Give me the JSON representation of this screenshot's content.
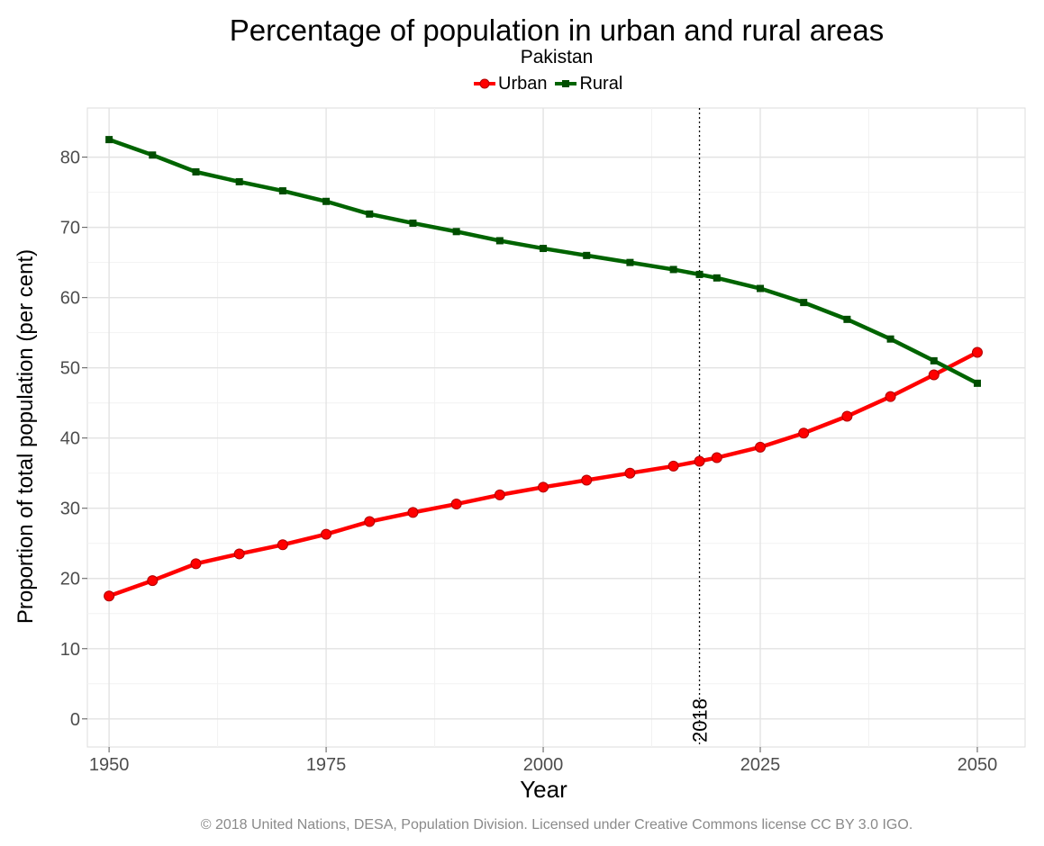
{
  "chart_data": {
    "type": "line",
    "title": "Percentage of population in urban and rural areas",
    "subtitle": "Pakistan",
    "xlabel": "Year",
    "ylabel": "Proportion of total population (per cent)",
    "xlim": [
      1947.5,
      2055.5
    ],
    "ylim": [
      -4,
      87
    ],
    "x_ticks": [
      1950,
      1975,
      2000,
      2025,
      2050
    ],
    "y_ticks": [
      0,
      10,
      20,
      30,
      40,
      50,
      60,
      70,
      80
    ],
    "x": [
      1950,
      1955,
      1960,
      1965,
      1970,
      1975,
      1980,
      1985,
      1990,
      1995,
      2000,
      2005,
      2010,
      2015,
      2018,
      2020,
      2025,
      2030,
      2035,
      2040,
      2045,
      2050
    ],
    "series": [
      {
        "name": "Urban",
        "color": "#ff0000",
        "marker": "circle",
        "values": [
          17.5,
          19.7,
          22.1,
          23.5,
          24.8,
          26.3,
          28.1,
          29.4,
          30.6,
          31.9,
          33.0,
          34.0,
          35.0,
          36.0,
          36.7,
          37.2,
          38.7,
          40.7,
          43.1,
          45.9,
          49.0,
          52.2
        ]
      },
      {
        "name": "Rural",
        "color": "#006400",
        "marker": "square",
        "values": [
          82.5,
          80.3,
          77.9,
          76.5,
          75.2,
          73.7,
          71.9,
          70.6,
          69.4,
          68.1,
          67.0,
          66.0,
          65.0,
          64.0,
          63.3,
          62.8,
          61.3,
          59.3,
          56.9,
          54.1,
          51.0,
          47.8
        ]
      }
    ],
    "reference_line": {
      "x": 2018,
      "label": "2018"
    },
    "legend_position": "top",
    "grid": true
  },
  "footer": "© 2018 United Nations, DESA, Population Division. Licensed under Creative Commons license CC BY 3.0 IGO."
}
